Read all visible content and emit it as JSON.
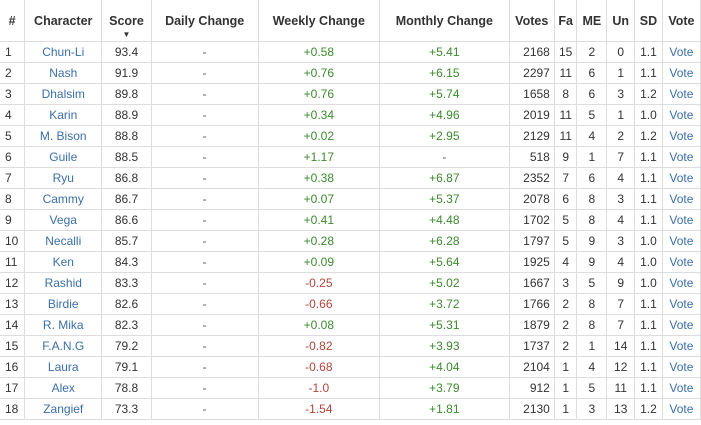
{
  "columns": {
    "rank": "#",
    "character": "Character",
    "score": "Score",
    "daily": "Daily Change",
    "weekly": "Weekly Change",
    "monthly": "Monthly Change",
    "votes": "Votes",
    "fa": "Fa",
    "me": "ME",
    "un": "Un",
    "sd": "SD",
    "vote": "Vote"
  },
  "sort_icon": "sort-down-triangle",
  "colors": {
    "link": "#3b6fa6",
    "positive": "#3c8a2e",
    "negative": "#b0453a",
    "border": "#dddddd"
  },
  "rows": [
    {
      "rank": "1",
      "character": "Chun-Li",
      "score": "93.4",
      "daily": "-",
      "weekly": "+0.58",
      "monthly": "+5.41",
      "votes": "2168",
      "fa": "15",
      "me": "2",
      "un": "0",
      "sd": "1.1",
      "vote": "Vote"
    },
    {
      "rank": "2",
      "character": "Nash",
      "score": "91.9",
      "daily": "-",
      "weekly": "+0.76",
      "monthly": "+6.15",
      "votes": "2297",
      "fa": "11",
      "me": "6",
      "un": "1",
      "sd": "1.1",
      "vote": "Vote"
    },
    {
      "rank": "3",
      "character": "Dhalsim",
      "score": "89.8",
      "daily": "-",
      "weekly": "+0.76",
      "monthly": "+5.74",
      "votes": "1658",
      "fa": "8",
      "me": "6",
      "un": "3",
      "sd": "1.2",
      "vote": "Vote"
    },
    {
      "rank": "4",
      "character": "Karin",
      "score": "88.9",
      "daily": "-",
      "weekly": "+0.34",
      "monthly": "+4.96",
      "votes": "2019",
      "fa": "11",
      "me": "5",
      "un": "1",
      "sd": "1.0",
      "vote": "Vote"
    },
    {
      "rank": "5",
      "character": "M. Bison",
      "score": "88.8",
      "daily": "-",
      "weekly": "+0.02",
      "monthly": "+2.95",
      "votes": "2129",
      "fa": "11",
      "me": "4",
      "un": "2",
      "sd": "1.2",
      "vote": "Vote"
    },
    {
      "rank": "6",
      "character": "Guile",
      "score": "88.5",
      "daily": "-",
      "weekly": "+1.17",
      "monthly": "-",
      "votes": "518",
      "fa": "9",
      "me": "1",
      "un": "7",
      "sd": "1.1",
      "vote": "Vote"
    },
    {
      "rank": "7",
      "character": "Ryu",
      "score": "86.8",
      "daily": "-",
      "weekly": "+0.38",
      "monthly": "+6.87",
      "votes": "2352",
      "fa": "7",
      "me": "6",
      "un": "4",
      "sd": "1.1",
      "vote": "Vote"
    },
    {
      "rank": "8",
      "character": "Cammy",
      "score": "86.7",
      "daily": "-",
      "weekly": "+0.07",
      "monthly": "+5.37",
      "votes": "2078",
      "fa": "6",
      "me": "8",
      "un": "3",
      "sd": "1.1",
      "vote": "Vote"
    },
    {
      "rank": "9",
      "character": "Vega",
      "score": "86.6",
      "daily": "-",
      "weekly": "+0.41",
      "monthly": "+4.48",
      "votes": "1702",
      "fa": "5",
      "me": "8",
      "un": "4",
      "sd": "1.1",
      "vote": "Vote"
    },
    {
      "rank": "10",
      "character": "Necalli",
      "score": "85.7",
      "daily": "-",
      "weekly": "+0.28",
      "monthly": "+6.28",
      "votes": "1797",
      "fa": "5",
      "me": "9",
      "un": "3",
      "sd": "1.0",
      "vote": "Vote"
    },
    {
      "rank": "11",
      "character": "Ken",
      "score": "84.3",
      "daily": "-",
      "weekly": "+0.09",
      "monthly": "+5.64",
      "votes": "1925",
      "fa": "4",
      "me": "9",
      "un": "4",
      "sd": "1.0",
      "vote": "Vote"
    },
    {
      "rank": "12",
      "character": "Rashid",
      "score": "83.3",
      "daily": "-",
      "weekly": "-0.25",
      "monthly": "+5.02",
      "votes": "1667",
      "fa": "3",
      "me": "5",
      "un": "9",
      "sd": "1.0",
      "vote": "Vote"
    },
    {
      "rank": "13",
      "character": "Birdie",
      "score": "82.6",
      "daily": "-",
      "weekly": "-0.66",
      "monthly": "+3.72",
      "votes": "1766",
      "fa": "2",
      "me": "8",
      "un": "7",
      "sd": "1.1",
      "vote": "Vote"
    },
    {
      "rank": "14",
      "character": "R. Mika",
      "score": "82.3",
      "daily": "-",
      "weekly": "+0.08",
      "monthly": "+5.31",
      "votes": "1879",
      "fa": "2",
      "me": "8",
      "un": "7",
      "sd": "1.1",
      "vote": "Vote"
    },
    {
      "rank": "15",
      "character": "F.A.N.G",
      "score": "79.2",
      "daily": "-",
      "weekly": "-0.82",
      "monthly": "+3.93",
      "votes": "1737",
      "fa": "2",
      "me": "1",
      "un": "14",
      "sd": "1.1",
      "vote": "Vote"
    },
    {
      "rank": "16",
      "character": "Laura",
      "score": "79.1",
      "daily": "-",
      "weekly": "-0.68",
      "monthly": "+4.04",
      "votes": "2104",
      "fa": "1",
      "me": "4",
      "un": "12",
      "sd": "1.1",
      "vote": "Vote"
    },
    {
      "rank": "17",
      "character": "Alex",
      "score": "78.8",
      "daily": "-",
      "weekly": "-1.0",
      "monthly": "+3.79",
      "votes": "912",
      "fa": "1",
      "me": "5",
      "un": "11",
      "sd": "1.1",
      "vote": "Vote"
    },
    {
      "rank": "18",
      "character": "Zangief",
      "score": "73.3",
      "daily": "-",
      "weekly": "-1.54",
      "monthly": "+1.81",
      "votes": "2130",
      "fa": "1",
      "me": "3",
      "un": "13",
      "sd": "1.2",
      "vote": "Vote"
    }
  ]
}
